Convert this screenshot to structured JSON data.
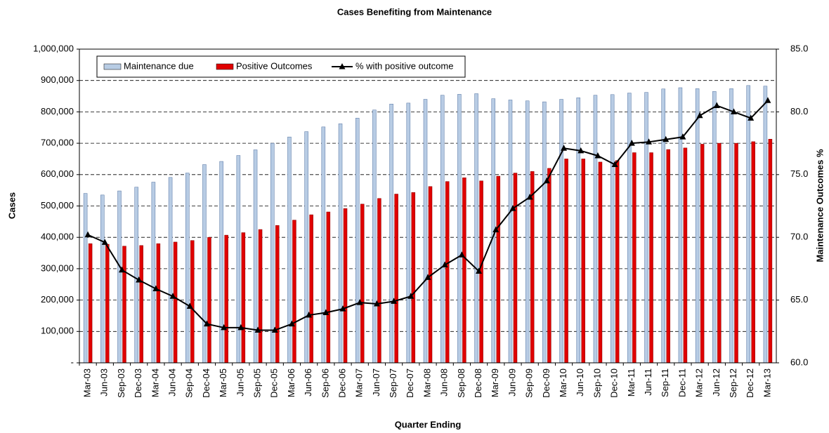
{
  "chart_data": {
    "type": "bar",
    "title": "Cases Benefiting from Maintenance",
    "x_label": "Quarter Ending",
    "y_label": "Cases",
    "y2_label": "Maintenance Outcomes %",
    "categories": [
      "Mar-03",
      "Jun-03",
      "Sep-03",
      "Dec-03",
      "Mar-04",
      "Jun-04",
      "Sep-04",
      "Dec-04",
      "Mar-05",
      "Jun-05",
      "Sep-05",
      "Dec-05",
      "Mar-06",
      "Jun-06",
      "Sep-06",
      "Dec-06",
      "Mar-07",
      "Jun-07",
      "Sep-07",
      "Dec-07",
      "Mar-08",
      "Jun-08",
      "Sep-08",
      "Dec-08",
      "Mar-09",
      "Jun-09",
      "Sep-09",
      "Dec-09",
      "Mar-10",
      "Jun-10",
      "Sep-10",
      "Dec-10",
      "Mar-11",
      "Jun-11",
      "Sep-11",
      "Dec-11",
      "Mar-12",
      "Jun-12",
      "Sep-12",
      "Dec-12",
      "Mar-13"
    ],
    "series": [
      {
        "name": "Maintenance due",
        "color": "#b8cce4",
        "values": [
          540000,
          535000,
          548000,
          560000,
          576000,
          591000,
          605000,
          632000,
          642000,
          661000,
          679000,
          700000,
          720000,
          737000,
          752000,
          762000,
          780000,
          806000,
          825000,
          828000,
          840000,
          853000,
          856000,
          858000,
          842000,
          838000,
          835000,
          832000,
          840000,
          845000,
          853000,
          855000,
          860000,
          862000,
          873000,
          877000,
          874000,
          865000,
          874000,
          884000,
          882000
        ]
      },
      {
        "name": "Positive Outcomes",
        "color": "#e00000",
        "values": [
          380000,
          378000,
          372000,
          374000,
          380000,
          385000,
          390000,
          400000,
          407000,
          415000,
          425000,
          438000,
          455000,
          472000,
          481000,
          492000,
          506000,
          524000,
          538000,
          543000,
          562000,
          578000,
          590000,
          580000,
          595000,
          605000,
          610000,
          620000,
          650000,
          650000,
          640000,
          645000,
          670000,
          670000,
          680000,
          685000,
          697000,
          700000,
          700000,
          705000,
          713000
        ]
      },
      {
        "name": "% with positive outcome",
        "color": "#000000",
        "type": "line",
        "axis": "y2",
        "values": [
          70.2,
          69.6,
          67.4,
          66.6,
          65.9,
          65.3,
          64.5,
          63.1,
          62.8,
          62.8,
          62.6,
          62.6,
          63.1,
          63.8,
          64.0,
          64.3,
          64.8,
          64.7,
          64.9,
          65.3,
          66.8,
          67.8,
          68.6,
          67.3,
          70.6,
          72.3,
          73.2,
          74.5,
          77.1,
          76.9,
          76.5,
          75.8,
          77.5,
          77.6,
          77.8,
          78.0,
          79.7,
          80.5,
          80.0,
          79.5,
          80.9
        ]
      }
    ],
    "ylim": [
      0,
      1000000
    ],
    "yticks": [
      {
        "value": 0,
        "label": "-"
      },
      {
        "value": 100000,
        "label": "100,000"
      },
      {
        "value": 200000,
        "label": "200,000"
      },
      {
        "value": 300000,
        "label": "300,000"
      },
      {
        "value": 400000,
        "label": "400,000"
      },
      {
        "value": 500000,
        "label": "500,000"
      },
      {
        "value": 600000,
        "label": "600,000"
      },
      {
        "value": 700000,
        "label": "700,000"
      },
      {
        "value": 800000,
        "label": "800,000"
      },
      {
        "value": 900000,
        "label": "900,000"
      },
      {
        "value": 1000000,
        "label": "1,000,000"
      }
    ],
    "y2lim": [
      60,
      85
    ],
    "y2ticks": [
      {
        "value": 60,
        "label": "60.0"
      },
      {
        "value": 65,
        "label": "65.0"
      },
      {
        "value": 70,
        "label": "70.0"
      },
      {
        "value": 75,
        "label": "75.0"
      },
      {
        "value": 80,
        "label": "80.0"
      },
      {
        "value": 85,
        "label": "85.0"
      }
    ],
    "grid": true,
    "legend": "top-left"
  }
}
